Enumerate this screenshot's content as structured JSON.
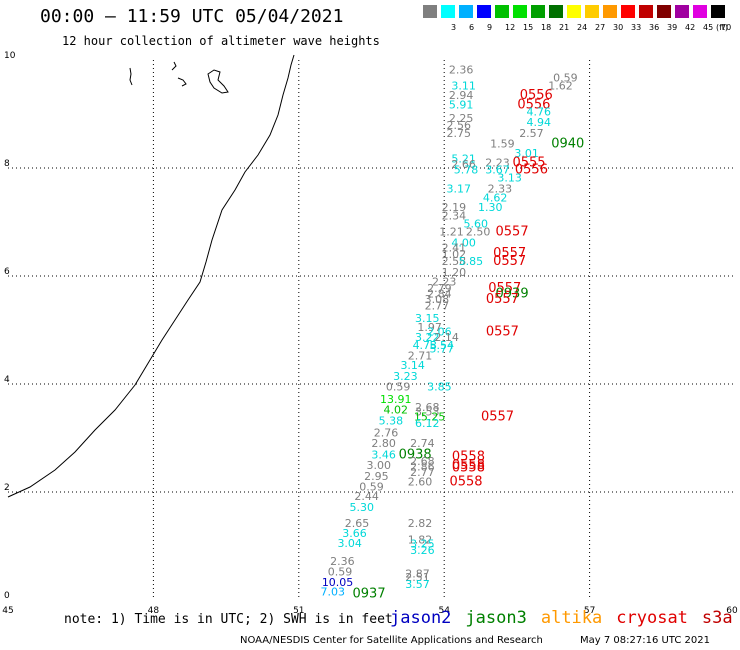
{
  "title": "00:00 – 11:59 UTC 05/04/2021",
  "subtitle": "12 hour collection of altimeter wave heights",
  "legend": {
    "unit": "(ft)",
    "bins": [
      {
        "label": "",
        "color": "#7f7f7f"
      },
      {
        "label": "3",
        "color": "#00ffff"
      },
      {
        "label": "6",
        "color": "#00b0ff"
      },
      {
        "label": "9",
        "color": "#0000ff"
      },
      {
        "label": "12",
        "color": "#00c000"
      },
      {
        "label": "15",
        "color": "#00e000"
      },
      {
        "label": "18",
        "color": "#00a000"
      },
      {
        "label": "21",
        "color": "#007000"
      },
      {
        "label": "24",
        "color": "#ffff00"
      },
      {
        "label": "27",
        "color": "#ffcc00"
      },
      {
        "label": "30",
        "color": "#ff9900"
      },
      {
        "label": "33",
        "color": "#ff0000"
      },
      {
        "label": "36",
        "color": "#c00000"
      },
      {
        "label": "39",
        "color": "#800000"
      },
      {
        "label": "42",
        "color": "#a000a0"
      },
      {
        "label": "45",
        "color": "#e000e0"
      },
      {
        "label": "70",
        "color": "#000000"
      }
    ]
  },
  "axes": {
    "x_ticks": [
      "45",
      "48",
      "51",
      "54",
      "57",
      "60"
    ],
    "y_ticks": [
      "0",
      "2",
      "4",
      "6",
      "8",
      "10"
    ]
  },
  "chart_data": {
    "type": "scatter",
    "xlim": [
      45,
      60
    ],
    "ylim": [
      0,
      10
    ],
    "grid": true,
    "points": [
      {
        "lon": 54.35,
        "lat": 9.75,
        "text": "2.36",
        "color": "#7f7f7f"
      },
      {
        "lon": 56.5,
        "lat": 9.6,
        "text": "0.59",
        "color": "#7f7f7f"
      },
      {
        "lon": 54.4,
        "lat": 9.45,
        "text": "3.11",
        "color": "#00d8d8"
      },
      {
        "lon": 56.4,
        "lat": 9.45,
        "text": "1.62",
        "color": "#7f7f7f"
      },
      {
        "lon": 54.35,
        "lat": 9.28,
        "text": "2.94",
        "color": "#7f7f7f"
      },
      {
        "lon": 55.9,
        "lat": 9.28,
        "text": "0556",
        "color": "#e00000"
      },
      {
        "lon": 54.35,
        "lat": 9.1,
        "text": "5.91",
        "color": "#00d8d8"
      },
      {
        "lon": 55.85,
        "lat": 9.1,
        "text": "0556",
        "color": "#e00000"
      },
      {
        "lon": 55.95,
        "lat": 8.97,
        "text": "4.76",
        "color": "#00d8d8"
      },
      {
        "lon": 54.35,
        "lat": 8.85,
        "text": "2.25",
        "color": "#7f7f7f"
      },
      {
        "lon": 54.3,
        "lat": 8.72,
        "text": "2.56",
        "color": "#7f7f7f"
      },
      {
        "lon": 55.95,
        "lat": 8.78,
        "text": "4.94",
        "color": "#00d8d8"
      },
      {
        "lon": 54.3,
        "lat": 8.57,
        "text": "2.75",
        "color": "#7f7f7f"
      },
      {
        "lon": 55.8,
        "lat": 8.57,
        "text": "2.57",
        "color": "#7f7f7f"
      },
      {
        "lon": 55.2,
        "lat": 8.38,
        "text": "1.59",
        "color": "#7f7f7f"
      },
      {
        "lon": 56.55,
        "lat": 8.38,
        "text": "0940",
        "color": "#008000"
      },
      {
        "lon": 55.7,
        "lat": 8.2,
        "text": "3.01",
        "color": "#00d8d8"
      },
      {
        "lon": 54.4,
        "lat": 8.1,
        "text": "5.21",
        "color": "#00d8d8"
      },
      {
        "lon": 54.4,
        "lat": 8.0,
        "text": "2.66",
        "color": "#7f7f7f"
      },
      {
        "lon": 55.1,
        "lat": 8.03,
        "text": "2.23",
        "color": "#7f7f7f"
      },
      {
        "lon": 55.75,
        "lat": 8.03,
        "text": "0555",
        "color": "#e00000"
      },
      {
        "lon": 54.45,
        "lat": 7.9,
        "text": "5.78",
        "color": "#00d8d8"
      },
      {
        "lon": 55.1,
        "lat": 7.9,
        "text": "3.67",
        "color": "#00d8d8"
      },
      {
        "lon": 55.8,
        "lat": 7.9,
        "text": "0556",
        "color": "#e00000"
      },
      {
        "lon": 55.35,
        "lat": 7.75,
        "text": "3.13",
        "color": "#00d8d8"
      },
      {
        "lon": 54.3,
        "lat": 7.55,
        "text": "3.17",
        "color": "#00d8d8"
      },
      {
        "lon": 55.15,
        "lat": 7.55,
        "text": "2.33",
        "color": "#7f7f7f"
      },
      {
        "lon": 55.05,
        "lat": 7.38,
        "text": "4.62",
        "color": "#00d8d8"
      },
      {
        "lon": 54.2,
        "lat": 7.2,
        "text": "2.19",
        "color": "#7f7f7f"
      },
      {
        "lon": 54.95,
        "lat": 7.2,
        "text": "1.30",
        "color": "#00d8d8"
      },
      {
        "lon": 54.2,
        "lat": 7.05,
        "text": "2.34",
        "color": "#7f7f7f"
      },
      {
        "lon": 54.65,
        "lat": 6.9,
        "text": "5.60",
        "color": "#00d8d8"
      },
      {
        "lon": 54.15,
        "lat": 6.75,
        "text": "1.21",
        "color": "#7f7f7f"
      },
      {
        "lon": 54.7,
        "lat": 6.75,
        "text": "2.50",
        "color": "#7f7f7f"
      },
      {
        "lon": 55.4,
        "lat": 6.75,
        "text": "0557",
        "color": "#e00000"
      },
      {
        "lon": 54.4,
        "lat": 6.55,
        "text": "4.00",
        "color": "#00d8d8"
      },
      {
        "lon": 54.2,
        "lat": 6.45,
        "text": "2.41",
        "color": "#7f7f7f"
      },
      {
        "lon": 55.35,
        "lat": 6.35,
        "text": "0557",
        "color": "#e00000"
      },
      {
        "lon": 54.2,
        "lat": 6.33,
        "text": "1.02",
        "color": "#7f7f7f"
      },
      {
        "lon": 54.2,
        "lat": 6.2,
        "text": "2.58",
        "color": "#7f7f7f"
      },
      {
        "lon": 54.55,
        "lat": 6.2,
        "text": "5.85",
        "color": "#00d8d8"
      },
      {
        "lon": 55.35,
        "lat": 6.2,
        "text": "0557",
        "color": "#e00000"
      },
      {
        "lon": 54.2,
        "lat": 6.0,
        "text": "1.20",
        "color": "#7f7f7f"
      },
      {
        "lon": 54.0,
        "lat": 5.82,
        "text": "2.23",
        "color": "#7f7f7f"
      },
      {
        "lon": 53.9,
        "lat": 5.7,
        "text": "2.79",
        "color": "#7f7f7f"
      },
      {
        "lon": 55.25,
        "lat": 5.7,
        "text": "0557",
        "color": "#e00000"
      },
      {
        "lon": 53.9,
        "lat": 5.6,
        "text": "2.84",
        "color": "#7f7f7f"
      },
      {
        "lon": 55.4,
        "lat": 5.6,
        "text": "0939",
        "color": "#008000"
      },
      {
        "lon": 53.85,
        "lat": 5.5,
        "text": "3.08",
        "color": "#7f7f7f"
      },
      {
        "lon": 55.2,
        "lat": 5.5,
        "text": "0557",
        "color": "#e00000"
      },
      {
        "lon": 53.85,
        "lat": 5.38,
        "text": "2.77",
        "color": "#7f7f7f"
      },
      {
        "lon": 53.65,
        "lat": 5.15,
        "text": "3.15",
        "color": "#00d8d8"
      },
      {
        "lon": 53.7,
        "lat": 4.98,
        "text": "1.97",
        "color": "#7f7f7f"
      },
      {
        "lon": 53.9,
        "lat": 4.9,
        "text": "2.06",
        "color": "#00d8d8"
      },
      {
        "lon": 55.2,
        "lat": 4.9,
        "text": "0557",
        "color": "#e00000"
      },
      {
        "lon": 53.65,
        "lat": 4.8,
        "text": "3.22",
        "color": "#00d8d8"
      },
      {
        "lon": 54.05,
        "lat": 4.8,
        "text": "2.14",
        "color": "#7f7f7f"
      },
      {
        "lon": 53.6,
        "lat": 4.65,
        "text": "4.73",
        "color": "#00d8d8"
      },
      {
        "lon": 53.95,
        "lat": 4.65,
        "text": "5.54",
        "color": "#00d8d8"
      },
      {
        "lon": 53.95,
        "lat": 4.58,
        "text": "5.77",
        "color": "#00d8d8"
      },
      {
        "lon": 53.5,
        "lat": 4.45,
        "text": "2.71",
        "color": "#7f7f7f"
      },
      {
        "lon": 53.35,
        "lat": 4.28,
        "text": "3.14",
        "color": "#00d8d8"
      },
      {
        "lon": 53.2,
        "lat": 4.07,
        "text": "3.23",
        "color": "#00d8d8"
      },
      {
        "lon": 53.05,
        "lat": 3.88,
        "text": "0.59",
        "color": "#7f7f7f"
      },
      {
        "lon": 53.9,
        "lat": 3.88,
        "text": "3.85",
        "color": "#00d8d8"
      },
      {
        "lon": 53.0,
        "lat": 3.65,
        "text": "13.91",
        "color": "#00e000"
      },
      {
        "lon": 53.0,
        "lat": 3.45,
        "text": "4.02",
        "color": "#00c000"
      },
      {
        "lon": 53.65,
        "lat": 3.5,
        "text": "2.68",
        "color": "#7f7f7f"
      },
      {
        "lon": 53.65,
        "lat": 3.42,
        "text": "3.53",
        "color": "#7f7f7f"
      },
      {
        "lon": 53.7,
        "lat": 3.32,
        "text": "15.25",
        "color": "#00c000"
      },
      {
        "lon": 55.1,
        "lat": 3.32,
        "text": "0557",
        "color": "#e00000"
      },
      {
        "lon": 52.9,
        "lat": 3.25,
        "text": "5.38",
        "color": "#00d8d8"
      },
      {
        "lon": 53.65,
        "lat": 3.2,
        "text": "6.12",
        "color": "#00d8d8"
      },
      {
        "lon": 52.8,
        "lat": 3.03,
        "text": "2.76",
        "color": "#7f7f7f"
      },
      {
        "lon": 52.75,
        "lat": 2.83,
        "text": "2.80",
        "color": "#7f7f7f"
      },
      {
        "lon": 53.55,
        "lat": 2.83,
        "text": "2.74",
        "color": "#7f7f7f"
      },
      {
        "lon": 52.75,
        "lat": 2.62,
        "text": "3.46",
        "color": "#00d8d8"
      },
      {
        "lon": 53.4,
        "lat": 2.62,
        "text": "0938",
        "color": "#008000"
      },
      {
        "lon": 54.5,
        "lat": 2.58,
        "text": "0558",
        "color": "#e00000"
      },
      {
        "lon": 53.55,
        "lat": 2.5,
        "text": "2.68",
        "color": "#7f7f7f"
      },
      {
        "lon": 54.5,
        "lat": 2.43,
        "text": "0558",
        "color": "#e00000"
      },
      {
        "lon": 52.65,
        "lat": 2.43,
        "text": "3.00",
        "color": "#7f7f7f"
      },
      {
        "lon": 53.55,
        "lat": 2.4,
        "text": "2.86",
        "color": "#7f7f7f"
      },
      {
        "lon": 54.5,
        "lat": 2.38,
        "text": "0558",
        "color": "#e00000"
      },
      {
        "lon": 53.55,
        "lat": 2.3,
        "text": "2.77",
        "color": "#7f7f7f"
      },
      {
        "lon": 52.6,
        "lat": 2.22,
        "text": "2.95",
        "color": "#7f7f7f"
      },
      {
        "lon": 53.5,
        "lat": 2.12,
        "text": "2.60",
        "color": "#7f7f7f"
      },
      {
        "lon": 54.45,
        "lat": 2.12,
        "text": "0558",
        "color": "#e00000"
      },
      {
        "lon": 52.5,
        "lat": 2.03,
        "text": "0.59",
        "color": "#7f7f7f"
      },
      {
        "lon": 52.4,
        "lat": 1.85,
        "text": "2.44",
        "color": "#7f7f7f"
      },
      {
        "lon": 52.3,
        "lat": 1.65,
        "text": "5.30",
        "color": "#00d8d8"
      },
      {
        "lon": 52.2,
        "lat": 1.35,
        "text": "2.65",
        "color": "#7f7f7f"
      },
      {
        "lon": 53.5,
        "lat": 1.35,
        "text": "2.82",
        "color": "#7f7f7f"
      },
      {
        "lon": 52.15,
        "lat": 1.17,
        "text": "3.66",
        "color": "#00d8d8"
      },
      {
        "lon": 53.5,
        "lat": 1.05,
        "text": "1.82",
        "color": "#7f7f7f"
      },
      {
        "lon": 52.05,
        "lat": 0.98,
        "text": "3.04",
        "color": "#00d8d8"
      },
      {
        "lon": 53.55,
        "lat": 0.97,
        "text": "3.25",
        "color": "#00d8d8"
      },
      {
        "lon": 53.55,
        "lat": 0.85,
        "text": "3.26",
        "color": "#00d8d8"
      },
      {
        "lon": 51.9,
        "lat": 0.65,
        "text": "2.36",
        "color": "#7f7f7f"
      },
      {
        "lon": 51.85,
        "lat": 0.45,
        "text": "0.59",
        "color": "#7f7f7f"
      },
      {
        "lon": 53.45,
        "lat": 0.42,
        "text": "2.87",
        "color": "#7f7f7f"
      },
      {
        "lon": 53.45,
        "lat": 0.35,
        "text": "2.51",
        "color": "#7f7f7f"
      },
      {
        "lon": 51.8,
        "lat": 0.26,
        "text": "10.05",
        "color": "#0000c0"
      },
      {
        "lon": 53.45,
        "lat": 0.22,
        "text": "3.57",
        "color": "#00d8d8"
      },
      {
        "lon": 51.7,
        "lat": 0.08,
        "text": "7.03",
        "color": "#00b0ff"
      },
      {
        "lon": 52.45,
        "lat": 0.05,
        "text": "0937",
        "color": "#008000"
      }
    ]
  },
  "note": "note: 1) Time is in UTC; 2) SWH is in feet",
  "missions": [
    {
      "label": "jason2",
      "color": "#0000c0"
    },
    {
      "label": "jason3",
      "color": "#008000"
    },
    {
      "label": "altika",
      "color": "#ff9900"
    },
    {
      "label": "cryosat",
      "color": "#e00000"
    },
    {
      "label": "s3a",
      "color": "#c00000"
    }
  ],
  "footer": {
    "center": "NOAA/NESDIS Center for Satellite Applications and Research",
    "date": "May  7 08:27:16 UTC 2021"
  }
}
